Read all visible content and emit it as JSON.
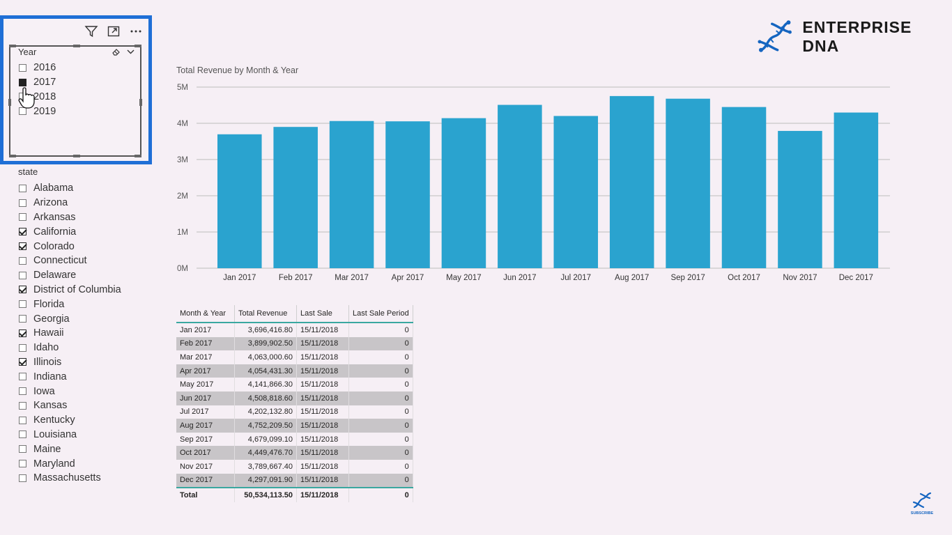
{
  "year_slicer": {
    "title": "Year",
    "items": [
      {
        "label": "2016",
        "state": "unchecked"
      },
      {
        "label": "2017",
        "state": "filled"
      },
      {
        "label": "2018",
        "state": "unchecked"
      },
      {
        "label": "2019",
        "state": "unchecked"
      }
    ],
    "header_icons": [
      "filter-icon",
      "focus-mode-icon",
      "more-options-icon"
    ],
    "tool_icons": [
      "eraser-icon",
      "chevron-down-icon"
    ]
  },
  "state_slicer": {
    "title": "state",
    "items": [
      {
        "label": "Alabama",
        "checked": false
      },
      {
        "label": "Arizona",
        "checked": false
      },
      {
        "label": "Arkansas",
        "checked": false
      },
      {
        "label": "California",
        "checked": true
      },
      {
        "label": "Colorado",
        "checked": true
      },
      {
        "label": "Connecticut",
        "checked": false
      },
      {
        "label": "Delaware",
        "checked": false
      },
      {
        "label": "District of Columbia",
        "checked": true
      },
      {
        "label": "Florida",
        "checked": false
      },
      {
        "label": "Georgia",
        "checked": false
      },
      {
        "label": "Hawaii",
        "checked": true
      },
      {
        "label": "Idaho",
        "checked": false
      },
      {
        "label": "Illinois",
        "checked": true
      },
      {
        "label": "Indiana",
        "checked": false
      },
      {
        "label": "Iowa",
        "checked": false
      },
      {
        "label": "Kansas",
        "checked": false
      },
      {
        "label": "Kentucky",
        "checked": false
      },
      {
        "label": "Louisiana",
        "checked": false
      },
      {
        "label": "Maine",
        "checked": false
      },
      {
        "label": "Maryland",
        "checked": false
      },
      {
        "label": "Massachusetts",
        "checked": false
      }
    ]
  },
  "logo": {
    "text": "ENTERPRISE DNA",
    "accent": "#1565c0"
  },
  "chart_data": {
    "type": "bar",
    "title": "Total Revenue by Month & Year",
    "categories": [
      "Jan 2017",
      "Feb 2017",
      "Mar 2017",
      "Apr 2017",
      "May 2017",
      "Jun 2017",
      "Jul 2017",
      "Aug 2017",
      "Sep 2017",
      "Oct 2017",
      "Nov 2017",
      "Dec 2017"
    ],
    "values": [
      3696416.8,
      3899902.5,
      4063000.6,
      4054431.3,
      4141866.3,
      4508818.6,
      4202132.8,
      4752209.5,
      4679099.1,
      4449476.7,
      3789667.4,
      4297091.9
    ],
    "ylim": [
      0,
      5000000
    ],
    "yticks": [
      {
        "v": 0,
        "label": "0M"
      },
      {
        "v": 1000000,
        "label": "1M"
      },
      {
        "v": 2000000,
        "label": "2M"
      },
      {
        "v": 3000000,
        "label": "3M"
      },
      {
        "v": 4000000,
        "label": "4M"
      },
      {
        "v": 5000000,
        "label": "5M"
      }
    ],
    "grid": true,
    "bar_color": "#2aa3cf"
  },
  "table": {
    "columns": [
      "Month & Year",
      "Total Revenue",
      "Last Sale",
      "Last Sale Period"
    ],
    "rows": [
      [
        "Jan 2017",
        "3,696,416.80",
        "15/11/2018",
        "0"
      ],
      [
        "Feb 2017",
        "3,899,902.50",
        "15/11/2018",
        "0"
      ],
      [
        "Mar 2017",
        "4,063,000.60",
        "15/11/2018",
        "0"
      ],
      [
        "Apr 2017",
        "4,054,431.30",
        "15/11/2018",
        "0"
      ],
      [
        "May 2017",
        "4,141,866.30",
        "15/11/2018",
        "0"
      ],
      [
        "Jun 2017",
        "4,508,818.60",
        "15/11/2018",
        "0"
      ],
      [
        "Jul 2017",
        "4,202,132.80",
        "15/11/2018",
        "0"
      ],
      [
        "Aug 2017",
        "4,752,209.50",
        "15/11/2018",
        "0"
      ],
      [
        "Sep 2017",
        "4,679,099.10",
        "15/11/2018",
        "0"
      ],
      [
        "Oct 2017",
        "4,449,476.70",
        "15/11/2018",
        "0"
      ],
      [
        "Nov 2017",
        "3,789,667.40",
        "15/11/2018",
        "0"
      ],
      [
        "Dec 2017",
        "4,297,091.90",
        "15/11/2018",
        "0"
      ]
    ],
    "total": [
      "Total",
      "50,534,113.50",
      "15/11/2018",
      "0"
    ]
  },
  "subscribe": {
    "label": "SUBSCRIBE"
  }
}
